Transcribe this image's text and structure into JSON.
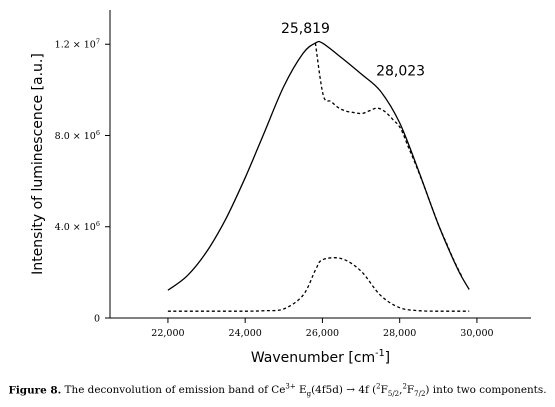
{
  "chart_data": {
    "type": "line",
    "xlabel_main": "Wavenumber [cm",
    "xlabel_sup": "-1",
    "xlabel_end": "]",
    "ylabel": "Intensity of luminescence [a.u.]",
    "xlim": [
      20500,
      31400
    ],
    "ylim": [
      0,
      13500000
    ],
    "x_ticks": [
      {
        "value": 22000,
        "label": "22,000"
      },
      {
        "value": 24000,
        "label": "24,000"
      },
      {
        "value": 26000,
        "label": "26,000"
      },
      {
        "value": 28000,
        "label": "28,000"
      },
      {
        "value": 30000,
        "label": "30,000"
      }
    ],
    "y_ticks": [
      {
        "value": 0,
        "label": "0",
        "sup": ""
      },
      {
        "value": 4000000,
        "label": "4.0 × 10",
        "sup": "6"
      },
      {
        "value": 8000000,
        "label": "8.0 × 10",
        "sup": "6"
      },
      {
        "value": 12000000,
        "label": "1.2 × 10",
        "sup": "7"
      }
    ],
    "annotations": [
      {
        "text": "25,819",
        "x": 25819,
        "y": 12050000
      },
      {
        "text": "28,023",
        "x": 28023,
        "y": 10100000
      }
    ],
    "series": [
      {
        "style": "solid",
        "x": [
          22000,
          22500,
          23000,
          23500,
          24000,
          24500,
          25000,
          25500,
          25819,
          26000,
          26500,
          27000,
          27500,
          28000,
          28500,
          29000,
          29500,
          29800
        ],
        "y": [
          1220000,
          1850000,
          2900000,
          4350000,
          6150000,
          8150000,
          10150000,
          11600000,
          12050000,
          12050000,
          11400000,
          10700000,
          9950000,
          8550000,
          6400000,
          4100000,
          2150000,
          1250000
        ]
      },
      {
        "style": "dashed",
        "x": [
          22000,
          23000,
          24000,
          24500,
          25000,
          25500,
          25819,
          26000,
          26500,
          27000,
          27500,
          28000,
          28500,
          29000,
          29500,
          29800
        ],
        "y": [
          300000,
          300000,
          300000,
          320000,
          400000,
          1000000,
          2100000,
          2550000,
          2600000,
          2050000,
          1000000,
          450000,
          320000,
          300000,
          300000,
          300000
        ]
      }
    ]
  },
  "caption": {
    "label": "Figure 8.",
    "text": "The deconvolution of emission band of Ce3+ Eg(4f5d) → 4f (2F5/2,2F7/2) into two components."
  }
}
